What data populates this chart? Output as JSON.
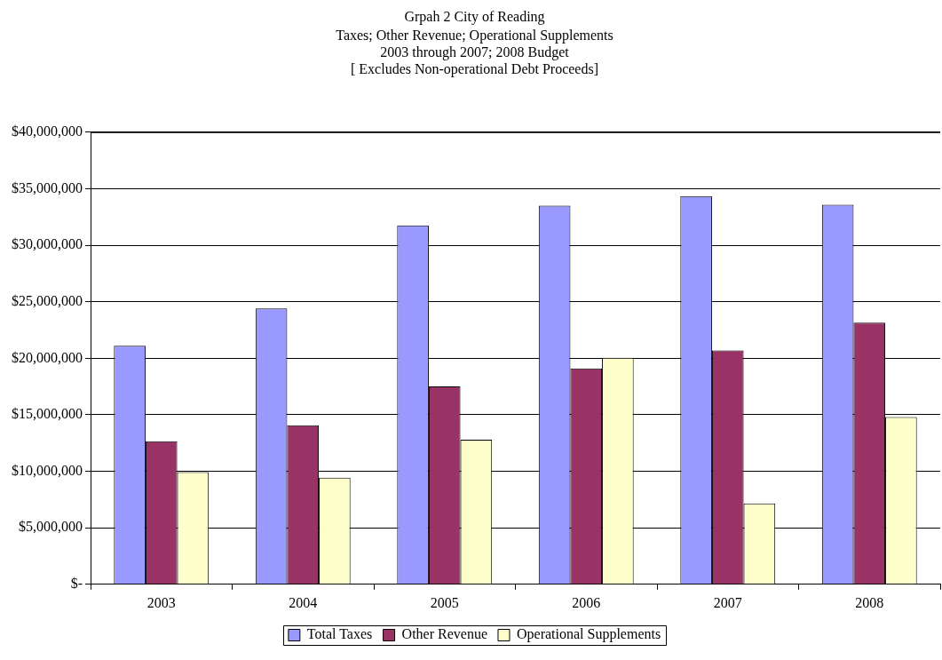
{
  "chart_data": {
    "type": "bar",
    "title": "Grpah 2 City of Reading",
    "subtitle": "Taxes; Other Revenue; Operational Supplements\n2003 through 2007; 2008 Budget\n[ Excludes Non-operational Debt Proceeds]",
    "categories": [
      "2003",
      "2004",
      "2005",
      "2006",
      "2007",
      "2008"
    ],
    "series": [
      {
        "name": "Total Taxes",
        "color": "#9999ff",
        "values": [
          21100000,
          24400000,
          31750000,
          33500000,
          34350000,
          33570000
        ]
      },
      {
        "name": "Other Revenue",
        "color": "#993366",
        "values": [
          12650000,
          14070000,
          17500000,
          19100000,
          20700000,
          23150000
        ]
      },
      {
        "name": "Operational Supplements",
        "color": "#ffffcc",
        "values": [
          9930000,
          9440000,
          12800000,
          20050000,
          7150000,
          14800000
        ]
      }
    ],
    "ylim": [
      0,
      40000000
    ],
    "yticks": [
      {
        "value": 0,
        "label": "$-"
      },
      {
        "value": 5000000,
        "label": "$5,000,000"
      },
      {
        "value": 10000000,
        "label": "$10,000,000"
      },
      {
        "value": 15000000,
        "label": "$15,000,000"
      },
      {
        "value": 20000000,
        "label": "$20,000,000"
      },
      {
        "value": 25000000,
        "label": "$25,000,000"
      },
      {
        "value": 30000000,
        "label": "$30,000,000"
      },
      {
        "value": 35000000,
        "label": "$35,000,000"
      },
      {
        "value": 40000000,
        "label": "$40,000,000"
      }
    ],
    "grid": "y",
    "legend": "bottom"
  }
}
